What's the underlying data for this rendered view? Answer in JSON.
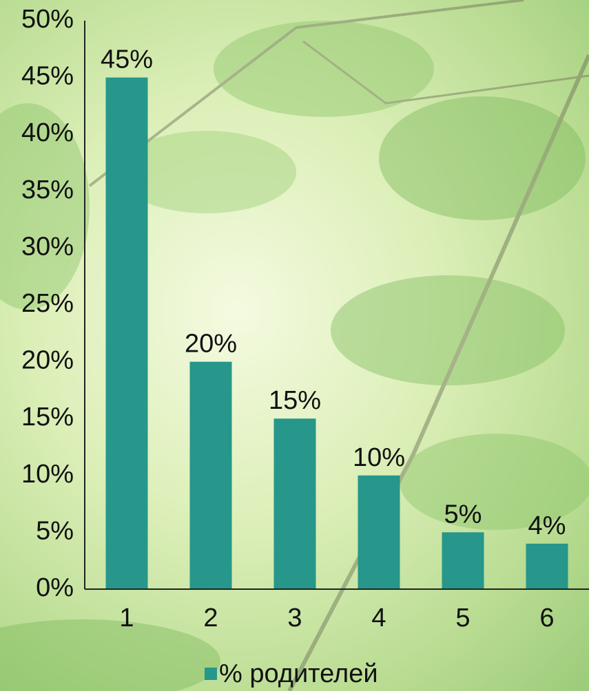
{
  "chart_data": {
    "type": "bar",
    "categories": [
      "1",
      "2",
      "3",
      "4",
      "5",
      "6"
    ],
    "series": [
      {
        "name": "% родителей",
        "color": "#26978a",
        "values": [
          45,
          20,
          15,
          10,
          5,
          4
        ],
        "value_labels": [
          "45%",
          "20%",
          "15%",
          "10%",
          "5%",
          "4%"
        ]
      }
    ],
    "ylim": [
      0,
      50
    ],
    "yticks": [
      {
        "value": 0,
        "label": "0%"
      },
      {
        "value": 5,
        "label": "5%"
      },
      {
        "value": 10,
        "label": "10%"
      },
      {
        "value": 15,
        "label": "15%"
      },
      {
        "value": 20,
        "label": "20%"
      },
      {
        "value": 25,
        "label": "25%"
      },
      {
        "value": 30,
        "label": "30%"
      },
      {
        "value": 35,
        "label": "35%"
      },
      {
        "value": 40,
        "label": "40%"
      },
      {
        "value": 45,
        "label": "45%"
      },
      {
        "value": 50,
        "label": "50%"
      }
    ],
    "legend": "bottom"
  }
}
